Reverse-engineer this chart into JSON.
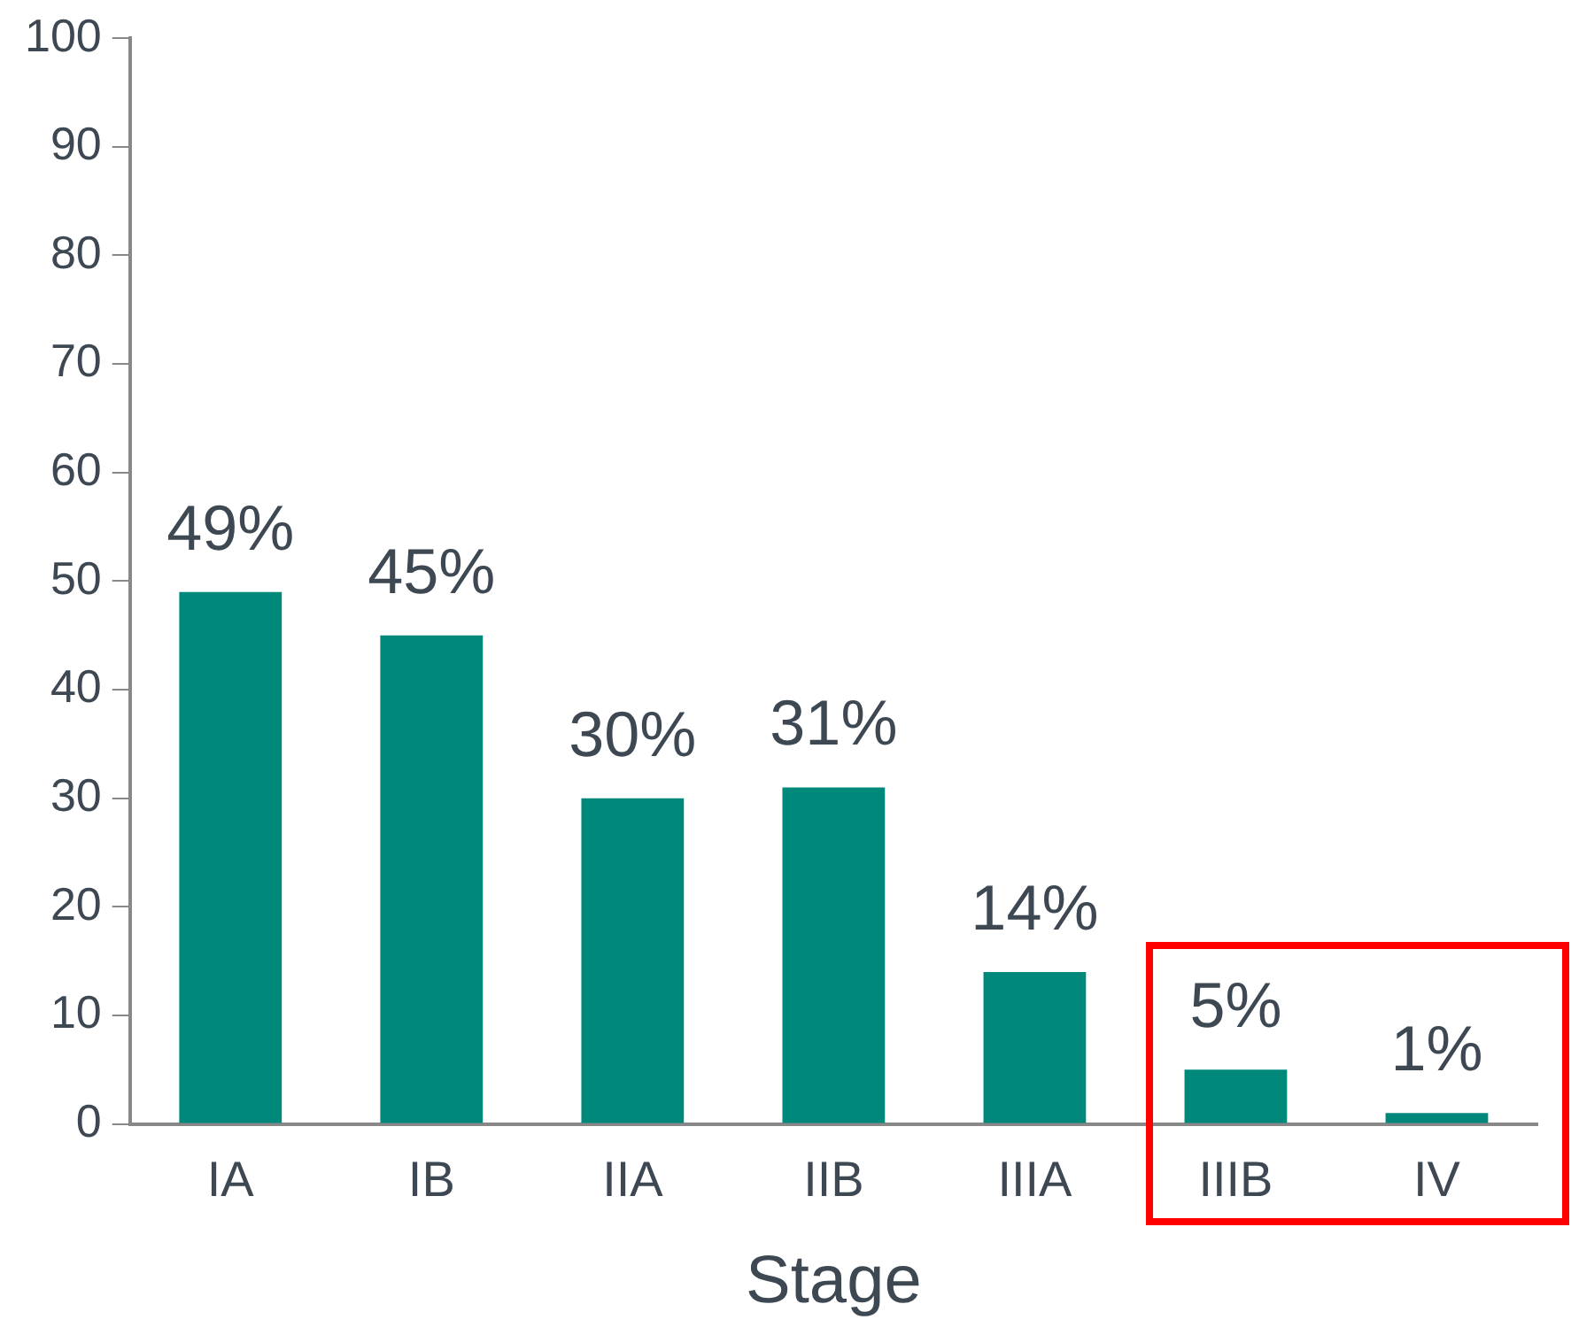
{
  "chart_data": {
    "type": "bar",
    "xlabel": "Stage",
    "categories": [
      "IA",
      "IB",
      "IIA",
      "IIB",
      "IIIA",
      "IIIB",
      "IV"
    ],
    "values": [
      49,
      45,
      30,
      31,
      14,
      5,
      1
    ],
    "value_labels": [
      "49%",
      "45%",
      "30%",
      "31%",
      "14%",
      "5%",
      "1%"
    ],
    "color": "#00897b",
    "ylim": [
      0,
      100
    ],
    "yticks": [
      0,
      10,
      20,
      30,
      40,
      50,
      60,
      70,
      80,
      90,
      100
    ],
    "grid": false,
    "legend": false
  }
}
